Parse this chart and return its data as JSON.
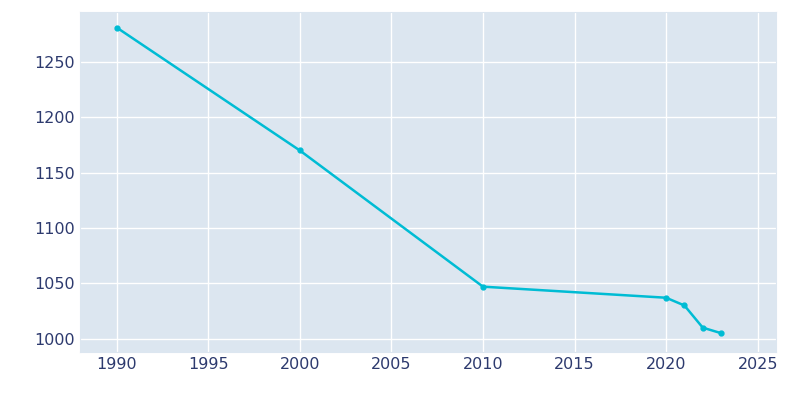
{
  "years": [
    1990,
    2000,
    2010,
    2020,
    2021,
    2022,
    2023
  ],
  "population": [
    1281,
    1170,
    1047,
    1037,
    1030,
    1010,
    1005
  ],
  "line_color": "#00bcd4",
  "marker": "o",
  "marker_size": 3.5,
  "line_width": 1.8,
  "fig_bg_color": "#ffffff",
  "plot_bg_color": "#dce6f0",
  "grid_color": "#ffffff",
  "xlim": [
    1988,
    2026
  ],
  "ylim": [
    988,
    1295
  ],
  "xticks": [
    1990,
    1995,
    2000,
    2005,
    2010,
    2015,
    2020,
    2025
  ],
  "yticks": [
    1000,
    1050,
    1100,
    1150,
    1200,
    1250
  ],
  "tick_color": "#2d3a6e",
  "tick_fontsize": 11.5,
  "spine_color": "#dce6f0"
}
